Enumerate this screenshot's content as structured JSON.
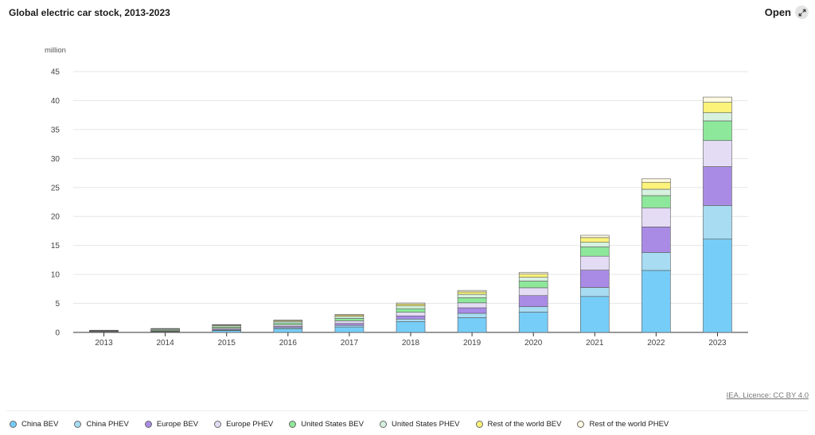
{
  "header": {
    "title": "Global electric car stock, 2013-2023",
    "open_label": "Open"
  },
  "footer": {
    "licence": "IEA. Licence: CC BY 4.0"
  },
  "chart_data": {
    "type": "bar",
    "stacked": true,
    "title": "Global electric car stock, 2013-2023",
    "ylabel": "million",
    "xlabel": "",
    "ylim": [
      0,
      45
    ],
    "yticks": [
      0,
      5,
      10,
      15,
      20,
      25,
      30,
      35,
      40,
      45
    ],
    "grid": true,
    "legend_position": "bottom",
    "categories": [
      "2013",
      "2014",
      "2015",
      "2016",
      "2017",
      "2018",
      "2019",
      "2020",
      "2021",
      "2022",
      "2023"
    ],
    "series": [
      {
        "name": "China BEV",
        "color": "#76cdf7",
        "values": [
          0.02,
          0.08,
          0.31,
          0.65,
          0.95,
          1.85,
          2.55,
          3.5,
          6.2,
          10.7,
          16.1
        ]
      },
      {
        "name": "China PHEV",
        "color": "#a7dcf3",
        "values": [
          0.01,
          0.03,
          0.09,
          0.17,
          0.28,
          0.45,
          0.75,
          0.95,
          1.55,
          3.1,
          5.8
        ]
      },
      {
        "name": "Europe BEV",
        "color": "#a98be6",
        "values": [
          0.03,
          0.06,
          0.15,
          0.21,
          0.32,
          0.55,
          0.95,
          1.9,
          3.0,
          4.4,
          6.7
        ]
      },
      {
        "name": "Europe PHEV",
        "color": "#e4dcf5",
        "values": [
          0.02,
          0.06,
          0.18,
          0.3,
          0.45,
          0.62,
          0.85,
          1.35,
          2.4,
          3.3,
          4.5
        ]
      },
      {
        "name": "United States BEV",
        "color": "#8ee89b",
        "values": [
          0.08,
          0.15,
          0.22,
          0.3,
          0.41,
          0.63,
          0.88,
          1.15,
          1.6,
          2.1,
          3.4
        ]
      },
      {
        "name": "United States PHEV",
        "color": "#d7f1df",
        "values": [
          0.09,
          0.15,
          0.2,
          0.26,
          0.35,
          0.48,
          0.6,
          0.66,
          0.8,
          1.1,
          1.4
        ]
      },
      {
        "name": "Rest of the world BEV",
        "color": "#fbf37a",
        "values": [
          0.05,
          0.07,
          0.12,
          0.15,
          0.23,
          0.32,
          0.42,
          0.55,
          0.8,
          1.2,
          1.8
        ]
      },
      {
        "name": "Rest of the world PHEV",
        "color": "#fffbe0",
        "values": [
          0.02,
          0.04,
          0.06,
          0.09,
          0.12,
          0.18,
          0.25,
          0.3,
          0.4,
          0.6,
          0.9
        ]
      }
    ]
  }
}
